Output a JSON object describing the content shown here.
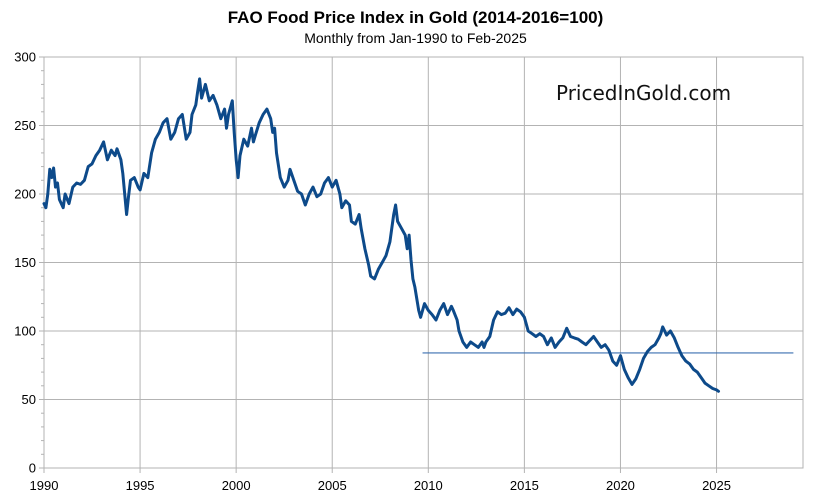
{
  "chart_data": {
    "type": "line",
    "title": "FAO Food Price Index in Gold (2014-2016=100)",
    "subtitle": "Monthly from Jan-1990 to Feb-2025",
    "watermark": "PricedInGold.com",
    "xlabel": "",
    "ylabel": "",
    "xlim": [
      1990,
      2029.5
    ],
    "ylim": [
      0,
      300
    ],
    "x_ticks": [
      1990,
      1995,
      2000,
      2005,
      2010,
      2015,
      2020,
      2025
    ],
    "y_ticks": [
      0,
      50,
      100,
      150,
      200,
      250,
      300
    ],
    "grid": true,
    "line_color": "#0d4a8a",
    "reference_line_color": "#3b6fb0",
    "series": [
      {
        "name": "FAO Food Price Index in Gold",
        "points": [
          [
            1990.0,
            193
          ],
          [
            1990.1,
            190
          ],
          [
            1990.2,
            200
          ],
          [
            1990.3,
            218
          ],
          [
            1990.4,
            212
          ],
          [
            1990.5,
            219
          ],
          [
            1990.6,
            205
          ],
          [
            1990.7,
            208
          ],
          [
            1990.8,
            196
          ],
          [
            1991.0,
            190
          ],
          [
            1991.1,
            200
          ],
          [
            1991.3,
            193
          ],
          [
            1991.5,
            205
          ],
          [
            1991.7,
            208
          ],
          [
            1991.9,
            207
          ],
          [
            1992.1,
            210
          ],
          [
            1992.3,
            220
          ],
          [
            1992.5,
            222
          ],
          [
            1992.7,
            228
          ],
          [
            1992.9,
            232
          ],
          [
            1993.1,
            238
          ],
          [
            1993.3,
            225
          ],
          [
            1993.5,
            232
          ],
          [
            1993.7,
            228
          ],
          [
            1993.8,
            233
          ],
          [
            1994.0,
            225
          ],
          [
            1994.1,
            215
          ],
          [
            1994.2,
            200
          ],
          [
            1994.3,
            185
          ],
          [
            1994.4,
            198
          ],
          [
            1994.5,
            210
          ],
          [
            1994.7,
            212
          ],
          [
            1994.9,
            205
          ],
          [
            1995.0,
            203
          ],
          [
            1995.2,
            215
          ],
          [
            1995.4,
            212
          ],
          [
            1995.6,
            230
          ],
          [
            1995.8,
            240
          ],
          [
            1996.0,
            245
          ],
          [
            1996.2,
            252
          ],
          [
            1996.4,
            255
          ],
          [
            1996.6,
            240
          ],
          [
            1996.8,
            245
          ],
          [
            1997.0,
            255
          ],
          [
            1997.2,
            258
          ],
          [
            1997.4,
            240
          ],
          [
            1997.6,
            245
          ],
          [
            1997.7,
            258
          ],
          [
            1997.9,
            265
          ],
          [
            1998.0,
            275
          ],
          [
            1998.1,
            284
          ],
          [
            1998.2,
            270
          ],
          [
            1998.4,
            280
          ],
          [
            1998.6,
            268
          ],
          [
            1998.8,
            272
          ],
          [
            1999.0,
            265
          ],
          [
            1999.2,
            255
          ],
          [
            1999.4,
            262
          ],
          [
            1999.5,
            248
          ],
          [
            1999.6,
            258
          ],
          [
            1999.8,
            268
          ],
          [
            1999.9,
            245
          ],
          [
            2000.0,
            225
          ],
          [
            2000.1,
            212
          ],
          [
            2000.2,
            228
          ],
          [
            2000.4,
            240
          ],
          [
            2000.6,
            235
          ],
          [
            2000.8,
            248
          ],
          [
            2000.9,
            238
          ],
          [
            2001.0,
            243
          ],
          [
            2001.2,
            252
          ],
          [
            2001.4,
            258
          ],
          [
            2001.6,
            262
          ],
          [
            2001.8,
            255
          ],
          [
            2001.9,
            245
          ],
          [
            2002.0,
            248
          ],
          [
            2002.1,
            230
          ],
          [
            2002.3,
            212
          ],
          [
            2002.5,
            205
          ],
          [
            2002.7,
            210
          ],
          [
            2002.8,
            218
          ],
          [
            2003.0,
            210
          ],
          [
            2003.2,
            202
          ],
          [
            2003.4,
            200
          ],
          [
            2003.6,
            192
          ],
          [
            2003.8,
            200
          ],
          [
            2004.0,
            205
          ],
          [
            2004.2,
            198
          ],
          [
            2004.4,
            200
          ],
          [
            2004.6,
            208
          ],
          [
            2004.8,
            212
          ],
          [
            2005.0,
            205
          ],
          [
            2005.2,
            210
          ],
          [
            2005.4,
            200
          ],
          [
            2005.5,
            190
          ],
          [
            2005.7,
            195
          ],
          [
            2005.9,
            192
          ],
          [
            2006.0,
            180
          ],
          [
            2006.2,
            178
          ],
          [
            2006.4,
            185
          ],
          [
            2006.5,
            175
          ],
          [
            2006.7,
            160
          ],
          [
            2006.9,
            148
          ],
          [
            2007.0,
            140
          ],
          [
            2007.2,
            138
          ],
          [
            2007.4,
            145
          ],
          [
            2007.6,
            150
          ],
          [
            2007.8,
            155
          ],
          [
            2008.0,
            165
          ],
          [
            2008.2,
            185
          ],
          [
            2008.3,
            192
          ],
          [
            2008.4,
            180
          ],
          [
            2008.6,
            175
          ],
          [
            2008.8,
            170
          ],
          [
            2008.9,
            160
          ],
          [
            2009.0,
            170
          ],
          [
            2009.1,
            152
          ],
          [
            2009.2,
            138
          ],
          [
            2009.3,
            132
          ],
          [
            2009.5,
            115
          ],
          [
            2009.6,
            110
          ],
          [
            2009.8,
            120
          ],
          [
            2010.0,
            115
          ],
          [
            2010.2,
            112
          ],
          [
            2010.4,
            108
          ],
          [
            2010.6,
            115
          ],
          [
            2010.8,
            120
          ],
          [
            2011.0,
            112
          ],
          [
            2011.2,
            118
          ],
          [
            2011.3,
            115
          ],
          [
            2011.5,
            108
          ],
          [
            2011.6,
            100
          ],
          [
            2011.8,
            92
          ],
          [
            2012.0,
            88
          ],
          [
            2012.2,
            92
          ],
          [
            2012.4,
            90
          ],
          [
            2012.6,
            88
          ],
          [
            2012.8,
            92
          ],
          [
            2012.9,
            88
          ],
          [
            2013.0,
            92
          ],
          [
            2013.2,
            96
          ],
          [
            2013.4,
            108
          ],
          [
            2013.6,
            114
          ],
          [
            2013.8,
            112
          ],
          [
            2014.0,
            113
          ],
          [
            2014.2,
            117
          ],
          [
            2014.4,
            112
          ],
          [
            2014.6,
            116
          ],
          [
            2014.8,
            114
          ],
          [
            2015.0,
            110
          ],
          [
            2015.2,
            100
          ],
          [
            2015.4,
            98
          ],
          [
            2015.6,
            96
          ],
          [
            2015.8,
            98
          ],
          [
            2016.0,
            96
          ],
          [
            2016.2,
            90
          ],
          [
            2016.4,
            95
          ],
          [
            2016.6,
            88
          ],
          [
            2016.8,
            92
          ],
          [
            2017.0,
            95
          ],
          [
            2017.2,
            102
          ],
          [
            2017.4,
            96
          ],
          [
            2017.6,
            95
          ],
          [
            2017.8,
            94
          ],
          [
            2018.0,
            92
          ],
          [
            2018.2,
            90
          ],
          [
            2018.4,
            93
          ],
          [
            2018.6,
            96
          ],
          [
            2018.8,
            92
          ],
          [
            2019.0,
            88
          ],
          [
            2019.2,
            90
          ],
          [
            2019.4,
            86
          ],
          [
            2019.6,
            78
          ],
          [
            2019.8,
            75
          ],
          [
            2020.0,
            82
          ],
          [
            2020.2,
            72
          ],
          [
            2020.4,
            66
          ],
          [
            2020.6,
            61
          ],
          [
            2020.8,
            65
          ],
          [
            2021.0,
            72
          ],
          [
            2021.2,
            80
          ],
          [
            2021.4,
            85
          ],
          [
            2021.6,
            88
          ],
          [
            2021.8,
            90
          ],
          [
            2022.0,
            95
          ],
          [
            2022.1,
            98
          ],
          [
            2022.2,
            103
          ],
          [
            2022.4,
            97
          ],
          [
            2022.6,
            100
          ],
          [
            2022.8,
            95
          ],
          [
            2023.0,
            88
          ],
          [
            2023.2,
            82
          ],
          [
            2023.4,
            78
          ],
          [
            2023.6,
            76
          ],
          [
            2023.8,
            72
          ],
          [
            2024.0,
            70
          ],
          [
            2024.2,
            66
          ],
          [
            2024.4,
            62
          ],
          [
            2024.6,
            60
          ],
          [
            2024.8,
            58
          ],
          [
            2025.0,
            57
          ],
          [
            2025.1,
            56
          ]
        ]
      }
    ],
    "reference_line": {
      "value": 84,
      "x_start": 2009.7,
      "x_end": 2029
    }
  }
}
